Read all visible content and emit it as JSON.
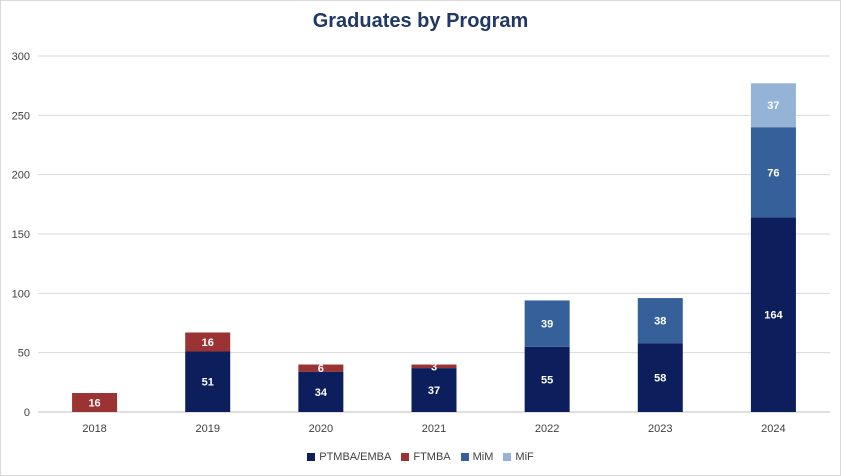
{
  "chart_data": {
    "type": "bar",
    "stacked": true,
    "title": "Graduates by Program",
    "xlabel": "",
    "ylabel": "",
    "categories": [
      "2018",
      "2019",
      "2020",
      "2021",
      "2022",
      "2023",
      "2024"
    ],
    "series": [
      {
        "name": "PTMBA/EMBA",
        "color": "#0c1f5c",
        "values": [
          0,
          51,
          34,
          37,
          55,
          58,
          164
        ]
      },
      {
        "name": "FTMBA",
        "color": "#9b3333",
        "values": [
          16,
          16,
          6,
          3,
          0,
          0,
          0
        ]
      },
      {
        "name": "MiM",
        "color": "#35609a",
        "values": [
          0,
          0,
          0,
          0,
          39,
          38,
          76
        ]
      },
      {
        "name": "MiF",
        "color": "#95b3d7",
        "values": [
          0,
          0,
          0,
          0,
          0,
          0,
          37
        ]
      }
    ],
    "ylim": [
      0,
      300
    ],
    "yticks": [
      0,
      50,
      100,
      150,
      200,
      250,
      300
    ],
    "grid": true,
    "legend_position": "bottom"
  }
}
